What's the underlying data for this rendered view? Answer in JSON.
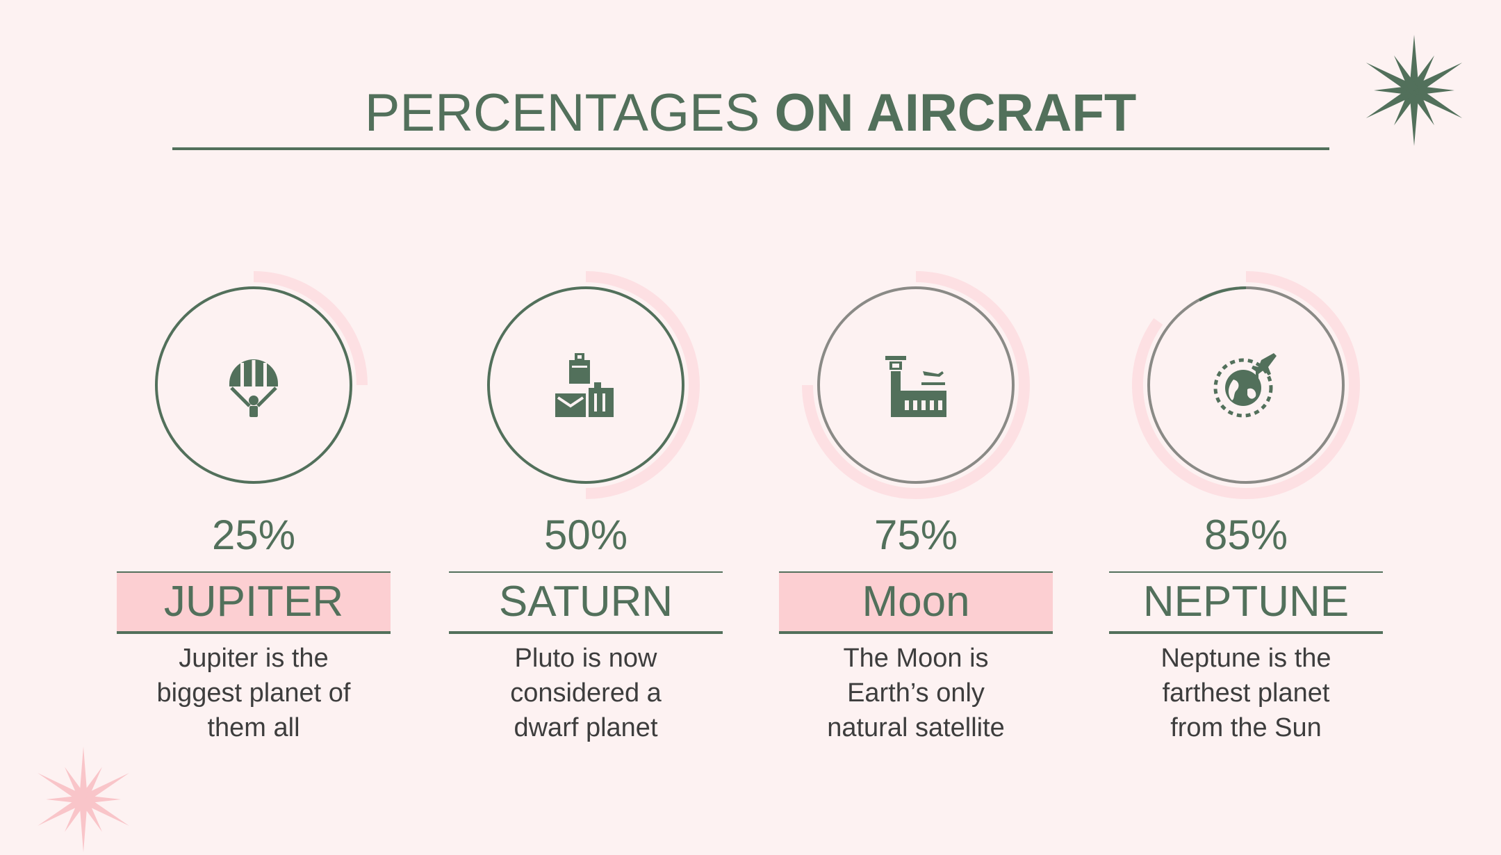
{
  "title": {
    "light": "PERCENTAGES ",
    "bold": "ON AIRCRAFT"
  },
  "colors": {
    "background": "#fdf2f2",
    "accent_green": "#52705b",
    "accent_pink": "#fccfd2",
    "arc_pink": "#fde0e3",
    "text_dark": "#3d3d3d"
  },
  "cards": [
    {
      "percent_label": "25%",
      "percent": 25,
      "name": "JUPITER",
      "highlighted": true,
      "description": "Jupiter is the\nbiggest planet of\nthem all",
      "icon": "hot-air-balloon-icon"
    },
    {
      "percent_label": "50%",
      "percent": 50,
      "name": "SATURN",
      "highlighted": false,
      "description": "Pluto is now\nconsidered a\ndwarf planet",
      "icon": "luggage-icon"
    },
    {
      "percent_label": "75%",
      "percent": 75,
      "name": "Moon",
      "highlighted": true,
      "description": "The Moon is\nEarth’s only\nnatural satellite",
      "icon": "airport-icon"
    },
    {
      "percent_label": "85%",
      "percent": 85,
      "name": "NEPTUNE",
      "highlighted": false,
      "description": "Neptune is the\nfarthest planet\nfrom the Sun",
      "icon": "world-flight-icon"
    }
  ]
}
